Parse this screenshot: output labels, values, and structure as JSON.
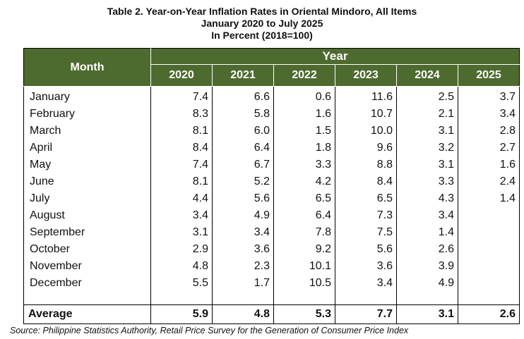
{
  "title": {
    "line1": "Table 2. Year-on-Year Inflation Rates in Oriental Mindoro, All Items",
    "line2": "January 2020 to July 2025",
    "line3": "In Percent (2018=100)"
  },
  "table": {
    "month_header": "Month",
    "year_group_header": "Year",
    "years": [
      "2020",
      "2021",
      "2022",
      "2023",
      "2024",
      "2025"
    ],
    "rows": [
      {
        "month": "January",
        "values": [
          "7.4",
          "6.6",
          "0.6",
          "11.6",
          "2.5",
          "3.7"
        ]
      },
      {
        "month": "February",
        "values": [
          "8.3",
          "5.8",
          "1.6",
          "10.7",
          "2.1",
          "3.4"
        ]
      },
      {
        "month": "March",
        "values": [
          "8.1",
          "6.0",
          "1.5",
          "10.0",
          "3.1",
          "2.8"
        ]
      },
      {
        "month": "April",
        "values": [
          "8.4",
          "6.4",
          "1.8",
          "9.6",
          "3.2",
          "2.7"
        ]
      },
      {
        "month": "May",
        "values": [
          "7.4",
          "6.7",
          "3.3",
          "8.8",
          "3.1",
          "1.6"
        ]
      },
      {
        "month": "June",
        "values": [
          "8.1",
          "5.2",
          "4.2",
          "8.4",
          "3.3",
          "2.4"
        ]
      },
      {
        "month": "July",
        "values": [
          "4.4",
          "5.6",
          "6.5",
          "6.5",
          "4.3",
          "1.4"
        ]
      },
      {
        "month": "August",
        "values": [
          "3.4",
          "4.9",
          "6.4",
          "7.3",
          "3.4",
          ""
        ]
      },
      {
        "month": "September",
        "values": [
          "3.1",
          "3.4",
          "7.8",
          "7.5",
          "1.4",
          ""
        ]
      },
      {
        "month": "October",
        "values": [
          "2.9",
          "3.6",
          "9.2",
          "5.6",
          "2.6",
          ""
        ]
      },
      {
        "month": "November",
        "values": [
          "4.8",
          "2.3",
          "10.1",
          "3.6",
          "3.9",
          ""
        ]
      },
      {
        "month": "December",
        "values": [
          "5.5",
          "1.7",
          "10.5",
          "3.4",
          "4.9",
          ""
        ]
      }
    ],
    "average": {
      "label": "Average",
      "values": [
        "5.9",
        "4.8",
        "5.3",
        "7.7",
        "3.1",
        "2.6"
      ]
    }
  },
  "colors": {
    "header_bg": "#4e6b2f",
    "header_text": "#ffffff"
  },
  "source": "Source: Philippine Statistics Authority, Retail Price Survey for the Generation of Consumer Price Index"
}
